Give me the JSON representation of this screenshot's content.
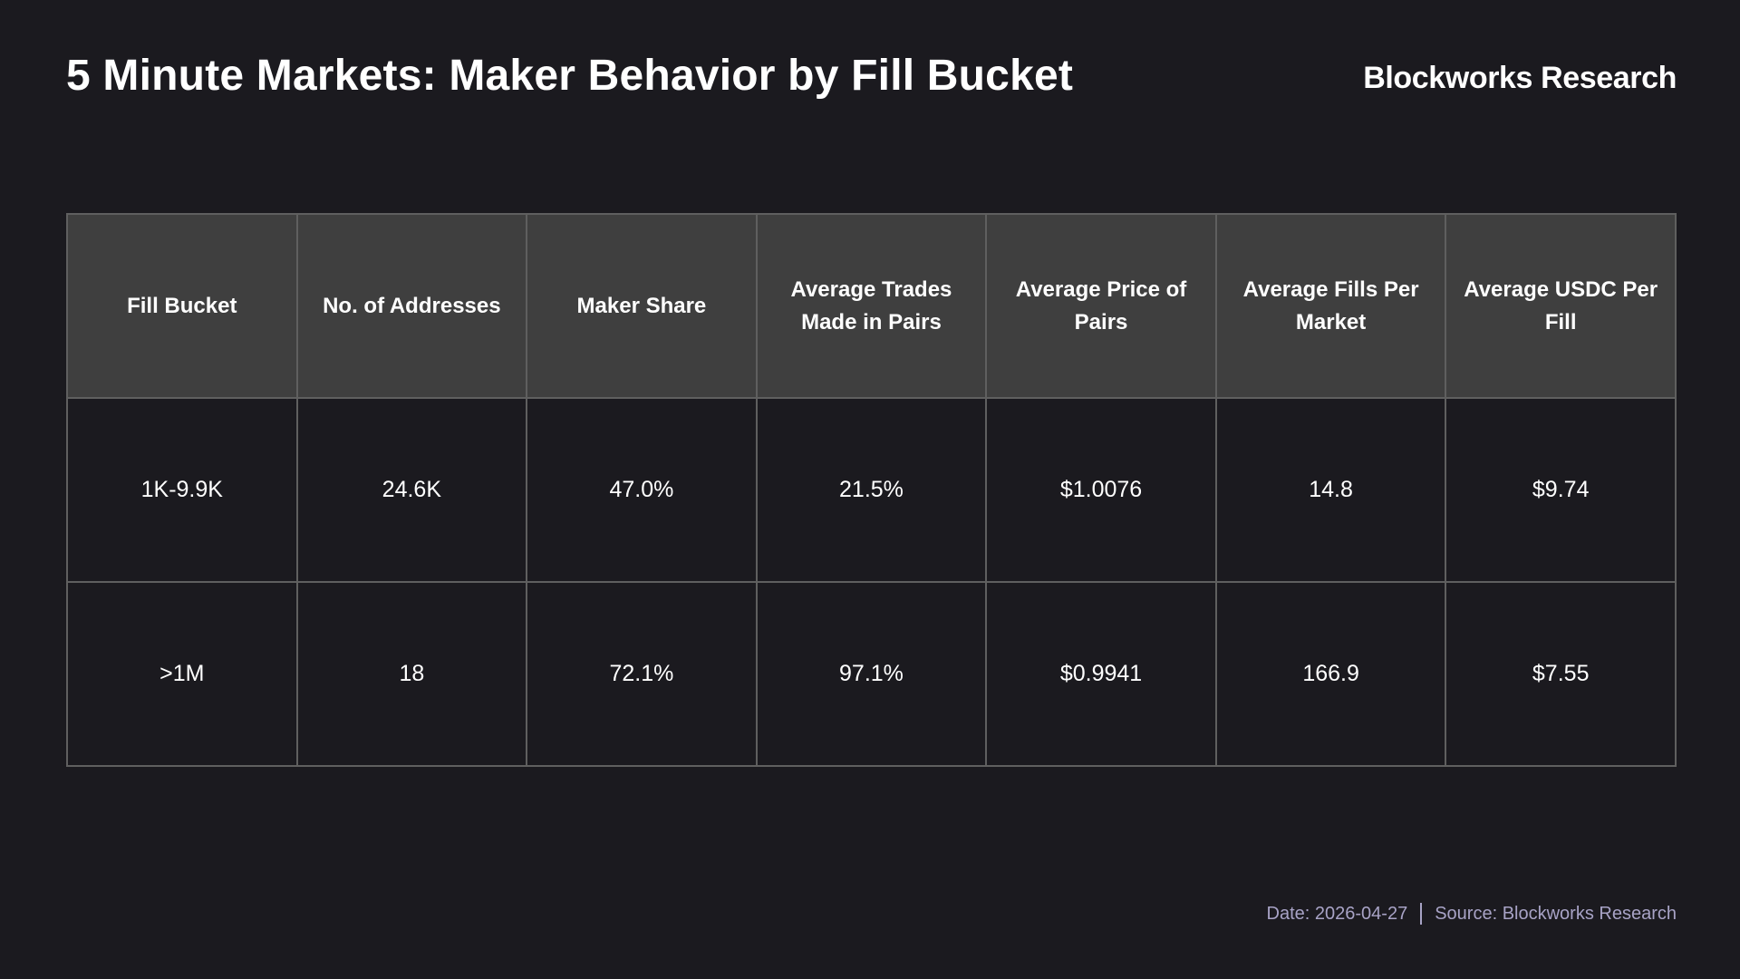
{
  "header": {
    "title": "5 Minute Markets: Maker Behavior by Fill Bucket",
    "brand": "Blockworks Research"
  },
  "chart_data": {
    "type": "table",
    "title": "5 Minute Markets: Maker Behavior by Fill Bucket",
    "columns": [
      "Fill Bucket",
      "No. of Addresses",
      "Maker Share",
      "Average Trades Made in Pairs",
      "Average Price of Pairs",
      "Average Fills Per Market",
      "Average USDC Per Fill"
    ],
    "rows": [
      [
        "1K-9.9K",
        "24.6K",
        "47.0%",
        "21.5%",
        "$1.0076",
        "14.8",
        "$9.74"
      ],
      [
        ">1M",
        "18",
        "72.1%",
        "97.1%",
        "$0.9941",
        "166.9",
        "$7.55"
      ]
    ]
  },
  "footer": {
    "date": "Date: 2026-04-27",
    "source": "Source: Blockworks Research"
  },
  "colors": {
    "background": "#1b1a1f",
    "header_cell": "#3f3f3f",
    "border": "#5f5f5f",
    "footer_text": "#a8a3c6"
  }
}
